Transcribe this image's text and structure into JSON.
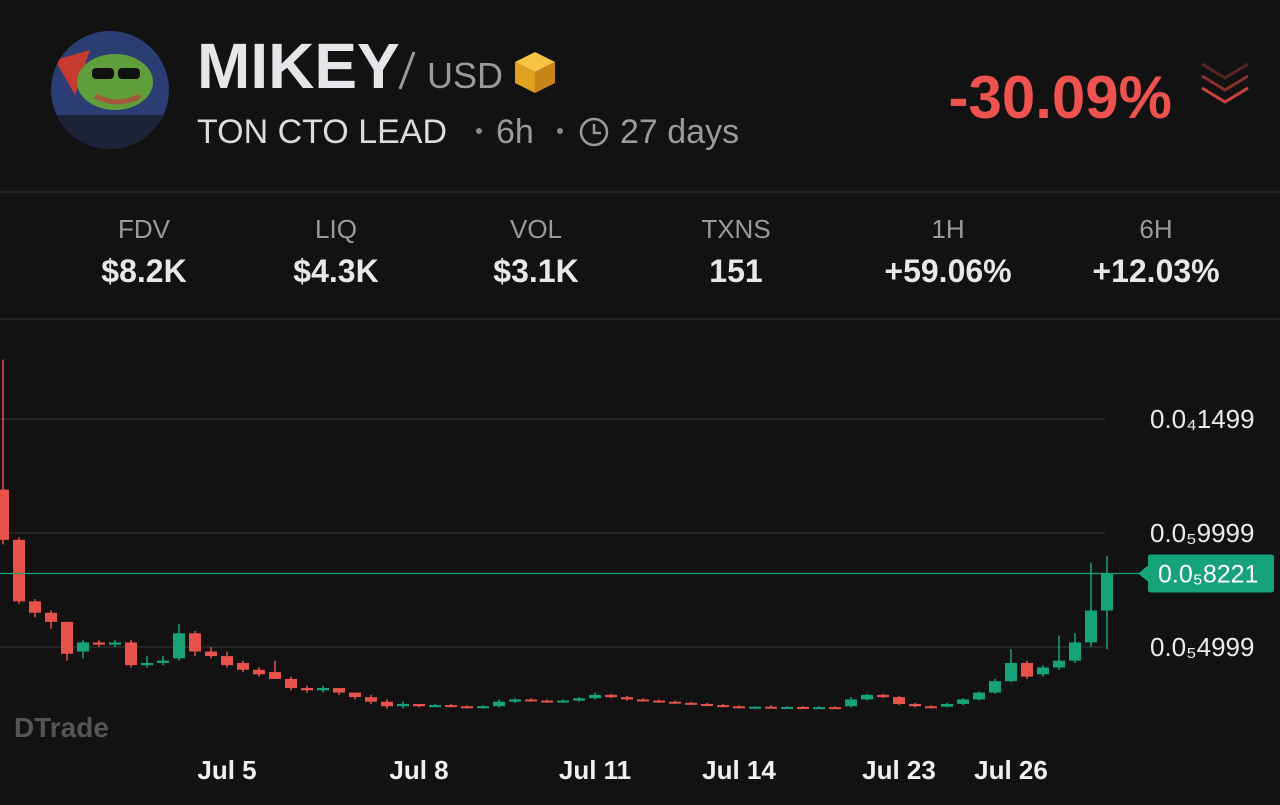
{
  "header": {
    "title": "MIKEY",
    "quote": "USD",
    "subtitle": "TON CTO LEAD",
    "timeframe": "6h",
    "age": "27 days",
    "change": "-30.09%"
  },
  "stats": [
    {
      "label": "FDV",
      "value": "$8.2K"
    },
    {
      "label": "LIQ",
      "value": "$4.3K"
    },
    {
      "label": "VOL",
      "value": "$3.1K"
    },
    {
      "label": "TXNS",
      "value": "151"
    },
    {
      "label": "1H",
      "value": "+59.06%"
    },
    {
      "label": "6H",
      "value": "+12.03%"
    }
  ],
  "chart_data": {
    "type": "candlestick",
    "watermark": "DTrade",
    "categories": [
      null,
      null,
      null,
      null,
      null,
      null,
      null,
      null,
      null,
      null,
      null,
      null,
      null,
      null,
      "Jul 5",
      null,
      null,
      null,
      null,
      null,
      null,
      null,
      null,
      null,
      null,
      null,
      "Jul 8",
      null,
      null,
      null,
      null,
      null,
      null,
      null,
      null,
      null,
      null,
      "Jul 11",
      null,
      null,
      null,
      null,
      null,
      null,
      null,
      null,
      "Jul 14",
      null,
      null,
      null,
      null,
      null,
      null,
      null,
      null,
      null,
      "Jul 23",
      null,
      null,
      null,
      null,
      null,
      null,
      "Jul 26",
      null,
      null,
      null,
      null,
      null,
      null
    ],
    "open": [
      1.19e-05,
      9.7e-06,
      7e-06,
      6.5e-06,
      6.1e-06,
      4.8e-06,
      5.2e-06,
      5.1e-06,
      5.2e-06,
      4.2e-06,
      4.3e-06,
      4.5e-06,
      5.6e-06,
      4.8e-06,
      4.6e-06,
      4.3e-06,
      4e-06,
      3.9e-06,
      3.6e-06,
      3.2e-06,
      3.1e-06,
      3.2e-06,
      3e-06,
      2.8e-06,
      2.6e-06,
      2.4e-06,
      2.5e-06,
      2.4e-06,
      2.45e-06,
      2.4e-06,
      2.35e-06,
      2.4e-06,
      2.6e-06,
      2.7e-06,
      2.65e-06,
      2.6e-06,
      2.65e-06,
      2.75e-06,
      2.9e-06,
      2.8e-06,
      2.7e-06,
      2.65e-06,
      2.6e-06,
      2.55e-06,
      2.5e-06,
      2.45e-06,
      2.4e-06,
      2.35e-06,
      2.38e-06,
      2.35e-06,
      2.37e-06,
      2.34e-06,
      2.36e-06,
      2.4e-06,
      2.7e-06,
      2.9e-06,
      2.8e-06,
      2.5e-06,
      2.4e-06,
      2.38e-06,
      2.5e-06,
      2.7e-06,
      3e-06,
      3.5e-06,
      4.3e-06,
      3.8e-06,
      4.1e-06,
      4.4e-06,
      5.2e-06,
      6.6e-06
    ],
    "high": [
      1.76e-05,
      9.8e-06,
      7.1e-06,
      6.6e-06,
      6.1e-06,
      5.3e-06,
      5.3e-06,
      5.3e-06,
      5.3e-06,
      4.6e-06,
      4.6e-06,
      6e-06,
      5.7e-06,
      5e-06,
      4.8e-06,
      4.4e-06,
      4.1e-06,
      4.4e-06,
      3.7e-06,
      3.3e-06,
      3.3e-06,
      3.2e-06,
      3e-06,
      2.9e-06,
      2.7e-06,
      2.6e-06,
      2.5e-06,
      2.5e-06,
      2.5e-06,
      2.45e-06,
      2.45e-06,
      2.7e-06,
      2.75e-06,
      2.75e-06,
      2.7e-06,
      2.7e-06,
      2.8e-06,
      3e-06,
      2.95e-06,
      2.85e-06,
      2.75e-06,
      2.7e-06,
      2.65e-06,
      2.6e-06,
      2.55e-06,
      2.5e-06,
      2.45e-06,
      2.4e-06,
      2.45e-06,
      2.4e-06,
      2.4e-06,
      2.4e-06,
      2.4e-06,
      2.8e-06,
      2.95e-06,
      2.95e-06,
      2.85e-06,
      2.55e-06,
      2.45e-06,
      2.55e-06,
      2.75e-06,
      3.05e-06,
      3.6e-06,
      4.9e-06,
      4.4e-06,
      4.2e-06,
      5.5e-06,
      5.6e-06,
      8.7e-06,
      9e-06
    ],
    "low": [
      9.5e-06,
      6.9e-06,
      6.3e-06,
      5.8e-06,
      4.4e-06,
      4.5e-06,
      5e-06,
      5e-06,
      4.1e-06,
      4.1e-06,
      4.2e-06,
      4.4e-06,
      4.6e-06,
      4.5e-06,
      4.1e-06,
      3.9e-06,
      3.7e-06,
      3.6e-06,
      3.1e-06,
      3e-06,
      3e-06,
      2.9e-06,
      2.7e-06,
      2.5e-06,
      2.3e-06,
      2.3e-06,
      2.35e-06,
      2.35e-06,
      2.35e-06,
      2.3e-06,
      2.3e-06,
      2.35e-06,
      2.55e-06,
      2.6e-06,
      2.55e-06,
      2.55e-06,
      2.6e-06,
      2.7e-06,
      2.75e-06,
      2.65e-06,
      2.6e-06,
      2.55e-06,
      2.5e-06,
      2.45e-06,
      2.4e-06,
      2.35e-06,
      2.3e-06,
      2.3e-06,
      2.3e-06,
      2.3e-06,
      2.3e-06,
      2.3e-06,
      2.3e-06,
      2.35e-06,
      2.65e-06,
      2.75e-06,
      2.45e-06,
      2.35e-06,
      2.35e-06,
      2.35e-06,
      2.45e-06,
      2.65e-06,
      2.95e-06,
      3.45e-06,
      3.6e-06,
      3.7e-06,
      4e-06,
      4.3e-06,
      5e-06,
      4.9e-06
    ],
    "close": [
      9.7e-06,
      7e-06,
      6.5e-06,
      6.1e-06,
      4.7e-06,
      5.2e-06,
      5.1e-06,
      5.2e-06,
      4.2e-06,
      4.3e-06,
      4.4e-06,
      5.6e-06,
      4.8e-06,
      4.6e-06,
      4.2e-06,
      4e-06,
      3.8e-06,
      3.6e-06,
      3.2e-06,
      3.1e-06,
      3.2e-06,
      3e-06,
      2.8e-06,
      2.6e-06,
      2.4e-06,
      2.5e-06,
      2.4e-06,
      2.45e-06,
      2.4e-06,
      2.35e-06,
      2.4e-06,
      2.6e-06,
      2.7e-06,
      2.65e-06,
      2.6e-06,
      2.65e-06,
      2.75e-06,
      2.9e-06,
      2.8e-06,
      2.7e-06,
      2.65e-06,
      2.6e-06,
      2.55e-06,
      2.5e-06,
      2.45e-06,
      2.4e-06,
      2.35e-06,
      2.38e-06,
      2.35e-06,
      2.37e-06,
      2.34e-06,
      2.36e-06,
      2.35e-06,
      2.7e-06,
      2.9e-06,
      2.8e-06,
      2.5e-06,
      2.4e-06,
      2.38e-06,
      2.5e-06,
      2.7e-06,
      3e-06,
      3.5e-06,
      4.3e-06,
      3.7e-06,
      4.1e-06,
      4.4e-06,
      5.2e-06,
      6.6e-06,
      8.221e-06
    ],
    "ylim": [
      9.2e-07,
      1.89e-05
    ],
    "yticks": [
      {
        "value": 1.499e-05,
        "label": "0.0₄1499"
      },
      {
        "value": 9.999e-06,
        "label": "0.0₅9999"
      },
      {
        "value": 4.999e-06,
        "label": "0.0₅4999"
      }
    ],
    "last_price": {
      "value": 8.221e-06,
      "label": "0.0₅8221"
    },
    "grid": true,
    "up_color": "#16a37a",
    "down_color": "#e5534b"
  }
}
